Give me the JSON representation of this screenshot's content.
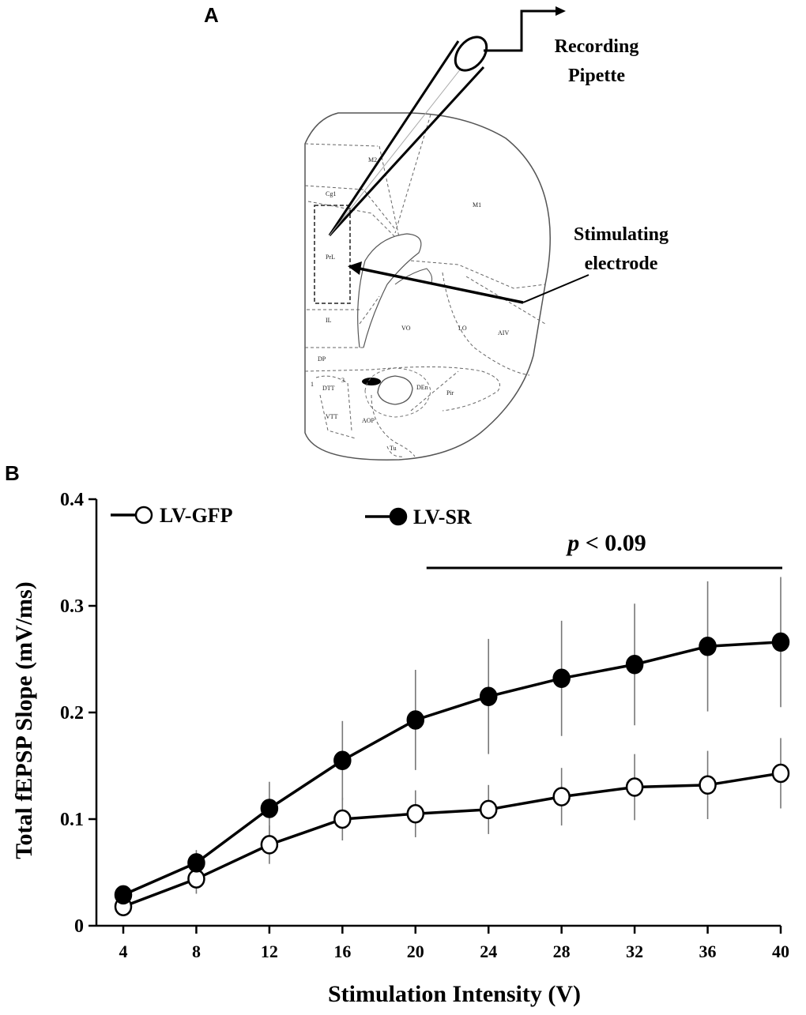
{
  "panel_a": {
    "letter": "A",
    "labels": {
      "recording_line1": "Recording",
      "recording_line2": "Pipette",
      "stimulating_line1": "Stimulating",
      "stimulating_line2": "electrode"
    },
    "regions": [
      "M2",
      "Cg1",
      "M1",
      "PrL",
      "IL",
      "VO",
      "LO",
      "AIV",
      "DP",
      "DTT",
      "VTT",
      "AOP",
      "DEn",
      "Pir",
      "Tu",
      "1",
      "3"
    ]
  },
  "panel_b": {
    "letter": "B"
  },
  "chart_data": {
    "type": "line",
    "title": "",
    "xlabel": "Stimulation Intensity (V)",
    "ylabel": "Total fEPSP Slope (mV/ms)",
    "x": [
      4,
      8,
      12,
      16,
      20,
      24,
      28,
      32,
      36,
      40
    ],
    "x_tick_labels": [
      "4",
      "8",
      "12",
      "16",
      "20",
      "24",
      "28",
      "32",
      "36",
      "40"
    ],
    "y_ticks": [
      0,
      0.1,
      0.2,
      0.3,
      0.4
    ],
    "y_tick_labels": [
      "0",
      "0.1",
      "0.2",
      "0.3",
      "0.4"
    ],
    "ylim": [
      0,
      0.4
    ],
    "series": [
      {
        "name": "LV-GFP",
        "marker": "open-circle",
        "values": [
          0.018,
          0.044,
          0.076,
          0.1,
          0.105,
          0.109,
          0.121,
          0.13,
          0.132,
          0.143
        ],
        "errors": [
          0.006,
          0.014,
          0.018,
          0.02,
          0.022,
          0.023,
          0.027,
          0.031,
          0.032,
          0.033
        ]
      },
      {
        "name": "LV-SR",
        "marker": "filled-circle",
        "values": [
          0.029,
          0.059,
          0.11,
          0.155,
          0.193,
          0.215,
          0.232,
          0.245,
          0.262,
          0.266
        ],
        "errors": [
          0.005,
          0.012,
          0.025,
          0.037,
          0.047,
          0.054,
          0.054,
          0.057,
          0.061,
          0.061
        ]
      }
    ],
    "annotation": {
      "p_symbol": "p",
      "p_rest": " < 0.09",
      "x_range": [
        20,
        40
      ]
    },
    "legend_position": "top-left",
    "colors": {
      "line": "#000000",
      "error_bar": "#777777",
      "open_fill": "#ffffff",
      "filled_fill": "#000000"
    }
  }
}
